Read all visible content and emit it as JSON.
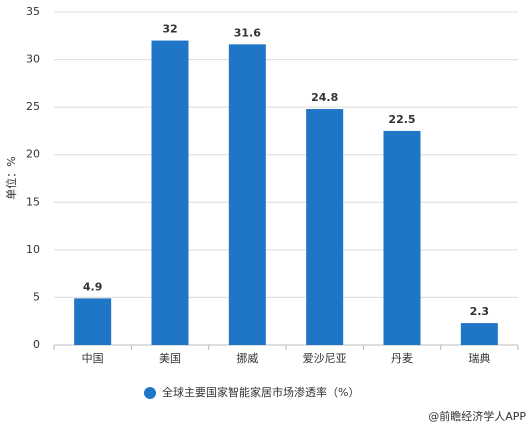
{
  "chart_data": {
    "type": "bar",
    "y_label": "单位：%",
    "categories": [
      "中国",
      "美国",
      "挪威",
      "爱沙尼亚",
      "丹麦",
      "瑞典"
    ],
    "series": [
      {
        "name": "全球主要国家智能家居市场渗透率（%）",
        "color": "#1f75c6",
        "values": [
          4.9,
          32,
          31.6,
          24.8,
          22.5,
          2.3
        ]
      }
    ],
    "ylim": [
      0,
      35
    ],
    "yticks": [
      0,
      5,
      10,
      15,
      20,
      25,
      30,
      35
    ],
    "grid": true,
    "footer": "@前瞻经济学人APP"
  }
}
